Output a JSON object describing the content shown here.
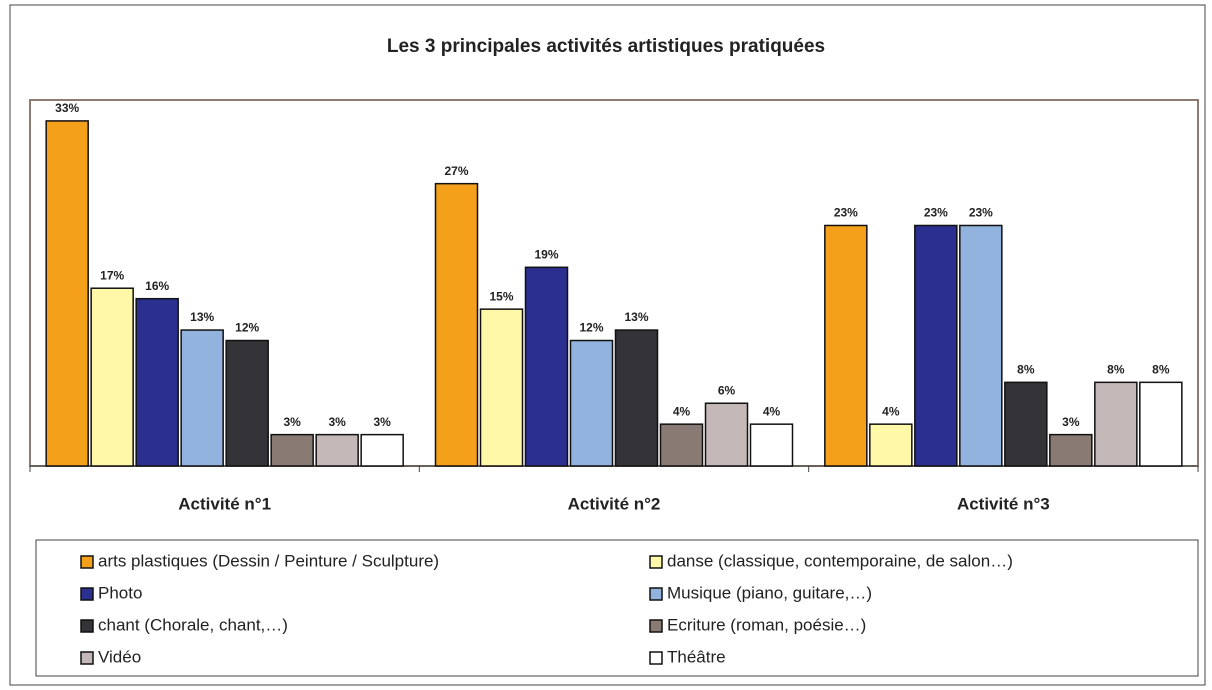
{
  "chart_data": {
    "type": "bar",
    "title": "Les 3 principales activités artistiques pratiquées",
    "categories": [
      "Activité n°1",
      "Activité n°2",
      "Activité n°3"
    ],
    "ylim": [
      0,
      35
    ],
    "series": [
      {
        "name": "arts plastiques (Dessin / Peinture / Sculpture)",
        "color": "#f5a01a",
        "values": [
          33,
          27,
          23
        ],
        "value_labels": [
          "33%",
          "27%",
          "23%"
        ]
      },
      {
        "name": "danse (classique, contemporaine, de salon…)",
        "color": "#fff8a8",
        "values": [
          17,
          15,
          4
        ],
        "value_labels": [
          "17%",
          "15%",
          "4%"
        ]
      },
      {
        "name": "Photo",
        "color": "#2b2f8f",
        "values": [
          16,
          19,
          23
        ],
        "value_labels": [
          "16%",
          "19%",
          "23%"
        ]
      },
      {
        "name": "Musique (piano, guitare,…)",
        "color": "#92b3de",
        "values": [
          13,
          12,
          23
        ],
        "value_labels": [
          "13%",
          "12%",
          "23%"
        ]
      },
      {
        "name": "chant (Chorale, chant,…)",
        "color": "#333338",
        "values": [
          12,
          13,
          8
        ],
        "value_labels": [
          "12%",
          "13%",
          "8%"
        ]
      },
      {
        "name": "Ecriture (roman, poésie…)",
        "color": "#8a7a74",
        "values": [
          3,
          4,
          3
        ],
        "value_labels": [
          "3%",
          "4%",
          "3%"
        ]
      },
      {
        "name": "Vidéo",
        "color": "#c4b8b8",
        "values": [
          3,
          6,
          8
        ],
        "value_labels": [
          "3%",
          "6%",
          "8%"
        ]
      },
      {
        "name": "Théâtre",
        "color": "#ffffff",
        "values": [
          3,
          4,
          8
        ],
        "value_labels": [
          "3%",
          "4%",
          "8%"
        ]
      }
    ]
  }
}
